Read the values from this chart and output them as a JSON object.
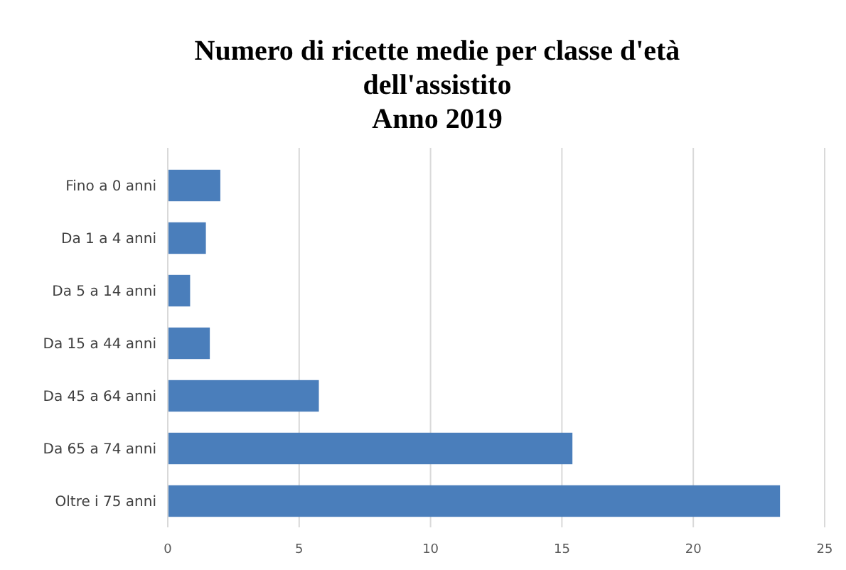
{
  "chart_data": {
    "type": "bar",
    "orientation": "horizontal",
    "title": "Numero di ricette medie per classe d'età\ndell'assistito\nAnno 2019",
    "categories": [
      "Fino a 0 anni",
      "Da 1 a 4 anni",
      "Da 5 a 14 anni",
      "Da 15 a 44 anni",
      "Da 45 a 64 anni",
      "Da 65 a 74 anni",
      "Oltre i 75 anni"
    ],
    "values": [
      2.0,
      1.45,
      0.85,
      1.6,
      5.75,
      15.4,
      23.3
    ],
    "color": "#4a7ebb",
    "xlim": [
      0,
      25
    ],
    "xticks": [
      0,
      5,
      10,
      15,
      20,
      25
    ],
    "grid": "x"
  }
}
